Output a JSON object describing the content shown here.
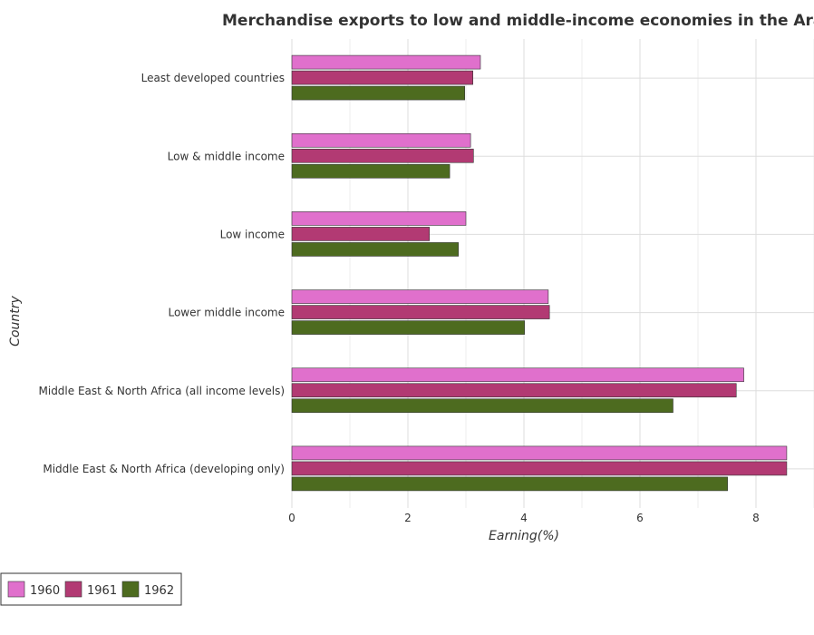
{
  "chart_data": {
    "type": "bar",
    "orientation": "horizontal",
    "title": "Merchandise exports to low and middle-income economies in the Ara",
    "xlabel": "Earning(%)",
    "ylabel": "Country",
    "xlim": [
      0,
      9
    ],
    "xticks": [
      0,
      2,
      4,
      6,
      8
    ],
    "grid": true,
    "legend_position": "bottom-left",
    "categories": [
      "Least developed countries",
      "Low & middle income",
      "Low income",
      "Lower middle income",
      "Middle East & North Africa (all income levels)",
      "Middle East & North Africa (developing only)"
    ],
    "series": [
      {
        "name": "1960",
        "color": "#e070cc",
        "values": [
          3.25,
          3.08,
          3.0,
          4.42,
          7.79,
          8.53
        ]
      },
      {
        "name": "1961",
        "color": "#b23a73",
        "values": [
          3.12,
          3.13,
          2.37,
          4.44,
          7.66,
          8.53
        ]
      },
      {
        "name": "1962",
        "color": "#4d6b1f",
        "values": [
          2.98,
          2.72,
          2.87,
          4.01,
          6.57,
          7.51
        ]
      }
    ]
  }
}
